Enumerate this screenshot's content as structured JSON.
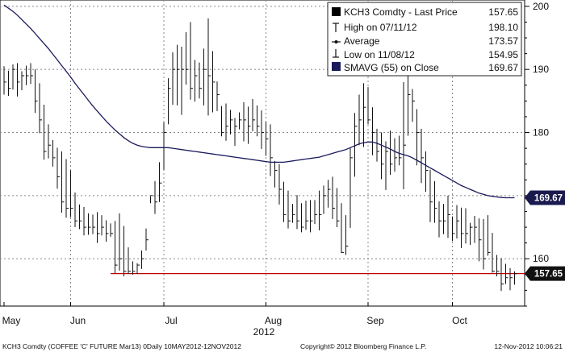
{
  "chart_data": {
    "type": "bar",
    "style": "ohlc-price-bars",
    "ticker": "KCH3 Comdty",
    "y_axis_side": "right",
    "ylim": [
      152.5,
      201
    ],
    "y_ticks": [
      {
        "value": 160,
        "label": "160"
      },
      {
        "value": 170,
        "label": "170"
      },
      {
        "value": 180,
        "label": "180"
      },
      {
        "value": 190,
        "label": "190"
      },
      {
        "value": 200,
        "label": "200"
      }
    ],
    "x_labels": [
      {
        "index": 0,
        "label": "May"
      },
      {
        "index": 15,
        "label": "Jun"
      },
      {
        "index": 36,
        "label": "Jul"
      },
      {
        "index": 59,
        "label": "Aug"
      },
      {
        "index": 82,
        "label": "Sep"
      },
      {
        "index": 101,
        "label": "Oct"
      }
    ],
    "year_label": "2012",
    "grid": true,
    "legend_position": "top-right",
    "legend": [
      {
        "icon": "black-square",
        "label": "KCH3 Comdty - Last Price",
        "value": "157.65"
      },
      {
        "icon": "high-marker",
        "label": "High on 07/11/12",
        "value": "198.10"
      },
      {
        "icon": "average-marker",
        "label": "Average",
        "value": "173.57"
      },
      {
        "icon": "low-marker",
        "label": "Low on 11/08/12",
        "value": "154.95"
      },
      {
        "icon": "navy-square",
        "label": "SMAVG (55) on Close",
        "value": "169.67"
      }
    ],
    "value_tags": [
      {
        "label": "169.67",
        "value": 169.67,
        "color": "#1a1a4e"
      },
      {
        "label": "157.65",
        "value": 157.65,
        "color": "#111111"
      }
    ],
    "reference_line": {
      "value": 157.65,
      "start_index": 24,
      "color": "#c00000"
    },
    "price_series": {
      "name": "KCH3 Comdty - Last Price",
      "color": "#111111",
      "high": [
        190.5,
        189.8,
        190.8,
        191,
        189.7,
        190.6,
        191,
        190,
        187.8,
        184.4,
        181.3,
        178.8,
        177.6,
        177,
        175.8,
        174,
        170.5,
        168.6,
        168.2,
        167.2,
        167,
        167.4,
        166.9,
        166.1,
        165.6,
        166,
        167.2,
        165.2,
        161.8,
        159.6,
        159.3,
        161.3,
        164.8,
        169.9,
        172.3,
        175.3,
        181.6,
        188.6,
        192.7,
        193.9,
        193.6,
        195.9,
        197.5,
        191.5,
        191.1,
        193.3,
        198.1,
        192.9,
        188.1,
        184.2,
        184.6,
        183.6,
        182.3,
        183.2,
        184.8,
        184.1,
        185.3,
        184.3,
        183.5,
        181.7,
        181.3,
        175.5,
        175,
        172.2,
        170.8,
        168.7,
        170.1,
        168.8,
        169.2,
        169.3,
        169.3,
        170.8,
        171.6,
        172.5,
        173,
        171.2,
        168.8,
        166.9,
        177.5,
        183.1,
        186,
        187.8,
        187.2,
        184,
        180.6,
        180,
        178.6,
        180.3,
        179.1,
        179.5,
        188,
        190,
        186.9,
        183.7,
        180.6,
        177,
        174.1,
        172.3,
        169.1,
        168.7,
        170,
        166.7,
        168.5,
        168.1,
        168,
        165.7,
        166.8,
        166.4,
        166.3,
        166.9,
        164.1,
        160.6,
        160.1,
        159.2,
        158.5,
        158
      ],
      "low": [
        186,
        185.8,
        186.8,
        185.7,
        186.7,
        187.5,
        187.7,
        183.1,
        179.9,
        175.7,
        175.9,
        174.6,
        171.1,
        167.3,
        166.5,
        166.6,
        165,
        164.7,
        163.7,
        163.8,
        163.9,
        162.5,
        163.7,
        162.7,
        163.5,
        157.7,
        158.1,
        157.2,
        157.6,
        157.5,
        157.6,
        158.4,
        161.3,
        168.8,
        167.1,
        169,
        174.1,
        181.3,
        184.4,
        184.3,
        182.8,
        187.6,
        185.2,
        184.9,
        185.4,
        184.3,
        182.7,
        183.2,
        183.4,
        179.4,
        178.7,
        179.7,
        177.9,
        180.5,
        178.6,
        178.2,
        180.2,
        179.4,
        177.4,
        176.3,
        173.1,
        171.3,
        168.6,
        165.8,
        164.8,
        165.7,
        164.7,
        164.2,
        164.6,
        164.2,
        165.5,
        164.5,
        167.1,
        168.1,
        166.3,
        165,
        160.9,
        160.6,
        164.9,
        173,
        178,
        177.7,
        181.3,
        176.4,
        175.4,
        172.6,
        170.9,
        173.3,
        173.8,
        174.8,
        171,
        179.5,
        181.7,
        174.8,
        172,
        170.6,
        165.8,
        165.7,
        163.4,
        163.9,
        163.3,
        162.8,
        163.2,
        161.7,
        162.4,
        162.2,
        162.5,
        159.6,
        158.3,
        160.5,
        157.8,
        157.2,
        154.9,
        156,
        155,
        155.9
      ],
      "close": [
        188,
        187,
        190,
        188,
        189,
        189,
        189,
        185,
        182,
        177,
        178,
        176,
        173,
        169,
        168,
        168,
        166,
        166,
        165,
        165,
        165,
        164,
        165,
        164,
        164,
        159,
        160,
        158,
        158,
        158,
        159,
        160,
        163,
        170,
        169,
        172,
        180,
        187,
        190,
        190,
        190,
        190,
        187,
        189,
        187,
        190,
        189,
        188,
        186,
        180,
        181,
        182,
        181,
        182,
        182,
        181,
        182,
        181,
        180,
        179,
        176,
        174,
        171,
        167,
        166,
        167,
        166,
        165,
        166,
        166,
        167,
        167,
        170,
        171,
        168,
        166,
        161,
        162,
        176,
        181,
        182,
        184,
        182,
        180,
        177,
        175,
        177,
        175,
        176,
        176,
        178,
        186,
        185,
        180,
        176,
        174,
        169,
        168,
        166,
        166,
        167,
        164,
        166,
        164,
        164,
        165,
        165,
        163,
        160,
        161,
        158,
        158,
        156,
        157,
        157,
        157.65
      ]
    },
    "sma_series": {
      "name": "SMAVG (55) on Close",
      "color": "#1a1a5c",
      "values": [
        200.2,
        199.7,
        199.2,
        198.6,
        197.9,
        197.2,
        196.5,
        195.7,
        194.9,
        194.1,
        193.3,
        192.4,
        191.5,
        190.6,
        189.7,
        188.8,
        187.8,
        186.9,
        186,
        185.1,
        184.2,
        183.4,
        182.6,
        181.8,
        181.1,
        180.4,
        179.8,
        179.2,
        178.7,
        178.3,
        178,
        177.8,
        177.7,
        177.6,
        177.6,
        177.6,
        177.6,
        177.6,
        177.5,
        177.4,
        177.3,
        177.2,
        177.1,
        177,
        176.9,
        176.8,
        176.7,
        176.6,
        176.5,
        176.4,
        176.3,
        176.2,
        176.1,
        176,
        175.9,
        175.8,
        175.7,
        175.6,
        175.5,
        175.4,
        175.3,
        175.3,
        175.3,
        175.3,
        175.4,
        175.5,
        175.6,
        175.7,
        175.8,
        175.9,
        176,
        176.1,
        176.3,
        176.5,
        176.7,
        176.9,
        177.1,
        177.3,
        177.6,
        177.9,
        178.2,
        178.4,
        178.5,
        178.5,
        178.3,
        178,
        177.7,
        177.4,
        177,
        176.7,
        176.5,
        176.3,
        176,
        175.6,
        175.2,
        174.8,
        174.4,
        174,
        173.6,
        173.2,
        172.8,
        172.4,
        172,
        171.6,
        171.3,
        171,
        170.7,
        170.4,
        170.2,
        170,
        169.9,
        169.8,
        169.7,
        169.67,
        169.67,
        169.67
      ]
    }
  },
  "footer": {
    "left": "KCH3 Comdty (COFFEE 'C' FUTURE Mar13) 0Daily 10MAY2012-12NOV2012",
    "center": "Copyright© 2012 Bloomberg Finance L.P.",
    "right": "12-Nov-2012 10:06:21"
  }
}
